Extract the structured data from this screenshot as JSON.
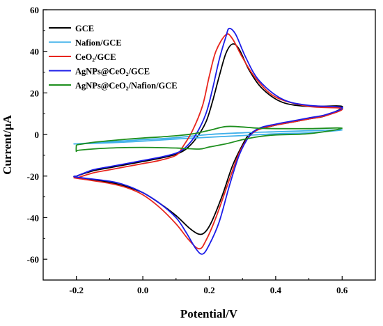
{
  "chart_data": {
    "type": "line",
    "title": "",
    "xlabel": "Potential/V",
    "ylabel": "Current/μA",
    "xlim": [
      -0.3,
      0.7
    ],
    "ylim": [
      -70,
      60
    ],
    "xticks": [
      -0.2,
      0.0,
      0.2,
      0.4,
      0.6
    ],
    "yticks": [
      -60,
      -40,
      -20,
      0,
      20,
      40,
      60
    ],
    "xtick_labels": [
      "-0.2",
      "0.0",
      "0.2",
      "0.4",
      "0.6"
    ],
    "ytick_labels": [
      "-60",
      "-40",
      "-20",
      "0",
      "20",
      "40",
      "60"
    ],
    "grid": false,
    "legend_position": "top-left",
    "series": [
      {
        "name": "GCE",
        "color": "#000000",
        "anodic": [
          [
            -0.2,
            -20
          ],
          [
            -0.15,
            -17.5
          ],
          [
            -0.1,
            -16
          ],
          [
            -0.05,
            -14.5
          ],
          [
            0.0,
            -13
          ],
          [
            0.05,
            -11.5
          ],
          [
            0.1,
            -9.5
          ],
          [
            0.13,
            -7
          ],
          [
            0.16,
            -2
          ],
          [
            0.19,
            6
          ],
          [
            0.21,
            16
          ],
          [
            0.23,
            28
          ],
          [
            0.25,
            39
          ],
          [
            0.27,
            43.5
          ],
          [
            0.29,
            41
          ],
          [
            0.32,
            31
          ],
          [
            0.36,
            22
          ],
          [
            0.42,
            15.5
          ],
          [
            0.5,
            13.5
          ],
          [
            0.6,
            13.5
          ]
        ],
        "cathodic": [
          [
            0.6,
            11.5
          ],
          [
            0.55,
            9
          ],
          [
            0.5,
            7.5
          ],
          [
            0.45,
            6
          ],
          [
            0.4,
            4.5
          ],
          [
            0.35,
            2.5
          ],
          [
            0.32,
            0
          ],
          [
            0.3,
            -5
          ],
          [
            0.27,
            -15
          ],
          [
            0.24,
            -29
          ],
          [
            0.21,
            -41
          ],
          [
            0.19,
            -46.5
          ],
          [
            0.17,
            -48
          ],
          [
            0.14,
            -45
          ],
          [
            0.1,
            -39
          ],
          [
            0.05,
            -33
          ],
          [
            0.0,
            -28
          ],
          [
            -0.05,
            -25
          ],
          [
            -0.1,
            -23
          ],
          [
            -0.2,
            -20.5
          ]
        ]
      },
      {
        "name": "Nafion/GCE",
        "color": "#3fb0ea",
        "anodic": [
          [
            -0.2,
            -4.5
          ],
          [
            -0.1,
            -3.5
          ],
          [
            0.0,
            -2.5
          ],
          [
            0.1,
            -1.5
          ],
          [
            0.2,
            0
          ],
          [
            0.3,
            0.8
          ],
          [
            0.4,
            1.3
          ],
          [
            0.5,
            1.8
          ],
          [
            0.6,
            2.2
          ]
        ],
        "cathodic": [
          [
            0.6,
            1.2
          ],
          [
            0.5,
            0.8
          ],
          [
            0.4,
            0.3
          ],
          [
            0.3,
            -0.5
          ],
          [
            0.2,
            -1.3
          ],
          [
            0.1,
            -2.2
          ],
          [
            0.0,
            -3.2
          ],
          [
            -0.1,
            -4.0
          ],
          [
            -0.2,
            -4.5
          ]
        ]
      },
      {
        "name": "CeO₂/GCE",
        "color": "#e8261e",
        "anodic": [
          [
            -0.2,
            -21
          ],
          [
            -0.15,
            -18.5
          ],
          [
            -0.1,
            -17
          ],
          [
            -0.05,
            -15.5
          ],
          [
            0.0,
            -14
          ],
          [
            0.05,
            -12.5
          ],
          [
            0.1,
            -10
          ],
          [
            0.12,
            -6
          ],
          [
            0.15,
            2
          ],
          [
            0.18,
            14
          ],
          [
            0.2,
            28
          ],
          [
            0.22,
            40
          ],
          [
            0.25,
            48
          ],
          [
            0.27,
            46
          ],
          [
            0.3,
            37
          ],
          [
            0.34,
            27
          ],
          [
            0.4,
            18
          ],
          [
            0.5,
            13.5
          ],
          [
            0.6,
            12.5
          ]
        ],
        "cathodic": [
          [
            0.6,
            11
          ],
          [
            0.55,
            9
          ],
          [
            0.5,
            7.5
          ],
          [
            0.45,
            6
          ],
          [
            0.4,
            4.5
          ],
          [
            0.35,
            2.5
          ],
          [
            0.32,
            -1
          ],
          [
            0.29,
            -9
          ],
          [
            0.26,
            -22
          ],
          [
            0.22,
            -40
          ],
          [
            0.19,
            -51
          ],
          [
            0.17,
            -55
          ],
          [
            0.14,
            -51
          ],
          [
            0.1,
            -43
          ],
          [
            0.05,
            -35
          ],
          [
            0.0,
            -29
          ],
          [
            -0.05,
            -25.5
          ],
          [
            -0.1,
            -23.5
          ],
          [
            -0.2,
            -21
          ]
        ]
      },
      {
        "name": "AgNPs@CeO₂/GCE",
        "color": "#1c1ce8",
        "anodic": [
          [
            -0.2,
            -20
          ],
          [
            -0.15,
            -17
          ],
          [
            -0.1,
            -15.5
          ],
          [
            -0.05,
            -14
          ],
          [
            0.0,
            -12.5
          ],
          [
            0.05,
            -11
          ],
          [
            0.1,
            -9
          ],
          [
            0.13,
            -6
          ],
          [
            0.16,
            0
          ],
          [
            0.19,
            10
          ],
          [
            0.21,
            22
          ],
          [
            0.23,
            36
          ],
          [
            0.25,
            47
          ],
          [
            0.26,
            51
          ],
          [
            0.28,
            48
          ],
          [
            0.31,
            37
          ],
          [
            0.35,
            26
          ],
          [
            0.42,
            17
          ],
          [
            0.5,
            14
          ],
          [
            0.6,
            13
          ]
        ],
        "cathodic": [
          [
            0.6,
            11.5
          ],
          [
            0.55,
            9.5
          ],
          [
            0.5,
            8
          ],
          [
            0.45,
            6.5
          ],
          [
            0.4,
            5
          ],
          [
            0.35,
            3
          ],
          [
            0.32,
            -1
          ],
          [
            0.29,
            -10
          ],
          [
            0.26,
            -25
          ],
          [
            0.23,
            -42
          ],
          [
            0.2,
            -53
          ],
          [
            0.18,
            -57.5
          ],
          [
            0.16,
            -55
          ],
          [
            0.13,
            -47
          ],
          [
            0.1,
            -40
          ],
          [
            0.05,
            -33
          ],
          [
            0.0,
            -28
          ],
          [
            -0.05,
            -24.5
          ],
          [
            -0.1,
            -22.5
          ],
          [
            -0.2,
            -20.5
          ]
        ]
      },
      {
        "name": "AgNPs@CeO₂/Nafion/GCE",
        "color": "#1e8f1e",
        "anodic": [
          [
            -0.2,
            -5
          ],
          [
            -0.15,
            -3.8
          ],
          [
            -0.1,
            -3
          ],
          [
            -0.05,
            -2.3
          ],
          [
            0.0,
            -1.7
          ],
          [
            0.05,
            -1.2
          ],
          [
            0.1,
            -0.6
          ],
          [
            0.15,
            0.3
          ],
          [
            0.2,
            2
          ],
          [
            0.25,
            3.8
          ],
          [
            0.3,
            3.6
          ],
          [
            0.35,
            3.0
          ],
          [
            0.4,
            2.8
          ],
          [
            0.5,
            2.8
          ],
          [
            0.6,
            3
          ]
        ],
        "cathodic": [
          [
            0.6,
            0.8
          ],
          [
            0.5,
            0.4
          ],
          [
            0.4,
            -0.2
          ],
          [
            0.35,
            -1
          ],
          [
            0.3,
            -2.5
          ],
          [
            0.25,
            -4.5
          ],
          [
            0.2,
            -6
          ],
          [
            0.17,
            -7
          ],
          [
            0.1,
            -6.5
          ],
          [
            0.0,
            -6.2
          ],
          [
            -0.1,
            -6.5
          ],
          [
            -0.19,
            -7.5
          ],
          [
            -0.2,
            -8
          ]
        ]
      }
    ]
  }
}
